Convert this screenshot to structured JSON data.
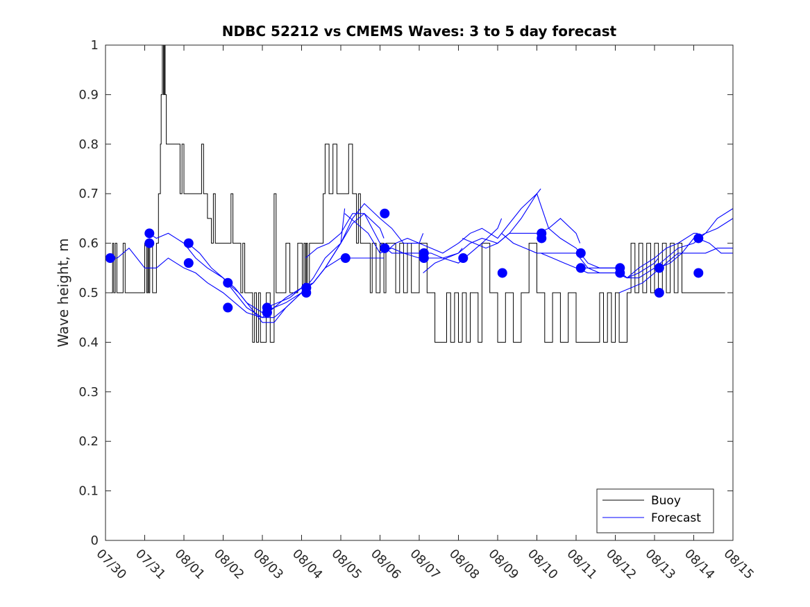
{
  "chart_data": {
    "type": "line",
    "title": "NDBC 52212 vs CMEMS Waves: 3 to 5 day forecast",
    "xlabel": "",
    "ylabel": "Wave height, m",
    "ylim": [
      0,
      1
    ],
    "xlim": [
      0,
      16
    ],
    "x_ticks": [
      0,
      1,
      2,
      3,
      4,
      5,
      6,
      7,
      8,
      9,
      10,
      11,
      12,
      13,
      14,
      15,
      16
    ],
    "x_tick_labels": [
      "07/30",
      "07/31",
      "08/01",
      "08/02",
      "08/03",
      "08/04",
      "08/05",
      "08/06",
      "08/07",
      "08/08",
      "08/09",
      "08/10",
      "08/11",
      "08/12",
      "08/13",
      "08/14",
      "08/15"
    ],
    "y_ticks": [
      0,
      0.1,
      0.2,
      0.3,
      0.4,
      0.5,
      0.6,
      0.7,
      0.8,
      0.9,
      1
    ],
    "y_tick_labels": [
      "0",
      "0.1",
      "0.2",
      "0.3",
      "0.4",
      "0.5",
      "0.6",
      "0.7",
      "0.8",
      "0.9",
      "1"
    ],
    "legend": {
      "position": "bottom-right",
      "entries": [
        {
          "label": "Buoy",
          "color": "#000000"
        },
        {
          "label": "Forecast",
          "color": "#0000ff"
        }
      ]
    },
    "series": [
      {
        "name": "Buoy",
        "color": "#000000",
        "style": "step",
        "x": [
          0,
          0.18,
          0.21,
          0.25,
          0.29,
          0.45,
          0.5,
          0.9,
          1.0,
          1.05,
          1.08,
          1.1,
          1.13,
          1.2,
          1.3,
          1.35,
          1.4,
          1.42,
          1.45,
          1.48,
          1.5,
          1.52,
          1.55,
          1.58,
          1.6,
          1.63,
          1.66,
          1.7,
          1.8,
          1.85,
          1.9,
          1.95,
          2.0,
          2.1,
          2.4,
          2.45,
          2.5,
          2.6,
          2.7,
          2.75,
          2.8,
          2.9,
          3.0,
          3.1,
          3.15,
          3.2,
          3.25,
          3.3,
          3.35,
          3.4,
          3.45,
          3.5,
          3.55,
          3.6,
          3.65,
          3.7,
          3.75,
          3.8,
          3.85,
          3.9,
          3.95,
          4.0,
          4.1,
          4.2,
          4.3,
          4.35,
          4.4,
          4.6,
          4.7,
          4.9,
          5.0,
          5.02,
          5.06,
          5.1,
          5.12,
          5.15,
          5.2,
          5.25,
          5.3,
          5.5,
          5.55,
          5.6,
          5.7,
          5.8,
          5.9,
          6.0,
          6.05,
          6.1,
          6.2,
          6.3,
          6.35,
          6.4,
          6.45,
          6.5,
          6.6,
          6.7,
          6.75,
          6.8,
          6.9,
          7.0,
          7.1,
          7.15,
          7.3,
          7.4,
          7.5,
          7.6,
          7.7,
          7.8,
          8.0,
          8.2,
          8.3,
          8.4,
          8.5,
          8.6,
          8.7,
          8.8,
          8.9,
          9.0,
          9.1,
          9.2,
          9.3,
          9.4,
          9.5,
          9.6,
          9.8,
          10.0,
          10.2,
          10.4,
          10.6,
          10.8,
          11.0,
          11.2,
          11.4,
          11.6,
          11.8,
          12.0,
          12.2,
          12.4,
          12.5,
          12.6,
          12.7,
          12.8,
          12.9,
          13.0,
          13.1,
          13.3,
          13.4,
          13.5,
          13.6,
          13.7,
          13.8,
          13.9,
          14.0,
          14.1,
          14.2,
          14.3,
          14.4,
          14.5,
          14.6,
          14.7,
          14.8,
          14.9,
          15.0,
          15.5,
          15.8
        ],
        "y": [
          0.5,
          0.6,
          0.5,
          0.6,
          0.5,
          0.6,
          0.5,
          0.5,
          0.6,
          0.5,
          0.6,
          0.5,
          0.6,
          0.5,
          0.6,
          0.7,
          0.8,
          0.9,
          1.0,
          0.9,
          1.0,
          0.9,
          0.8,
          0.8,
          0.8,
          0.8,
          0.8,
          0.8,
          0.8,
          0.8,
          0.7,
          0.8,
          0.7,
          0.7,
          0.7,
          0.8,
          0.7,
          0.65,
          0.6,
          0.7,
          0.6,
          0.6,
          0.6,
          0.6,
          0.6,
          0.7,
          0.6,
          0.6,
          0.6,
          0.6,
          0.5,
          0.6,
          0.5,
          0.5,
          0.5,
          0.5,
          0.4,
          0.5,
          0.4,
          0.5,
          0.4,
          0.4,
          0.5,
          0.4,
          0.7,
          0.5,
          0.5,
          0.6,
          0.5,
          0.6,
          0.6,
          0.5,
          0.6,
          0.5,
          0.6,
          0.5,
          0.6,
          0.6,
          0.6,
          0.6,
          0.7,
          0.8,
          0.7,
          0.8,
          0.7,
          0.7,
          0.7,
          0.7,
          0.8,
          0.7,
          0.7,
          0.6,
          0.7,
          0.6,
          0.6,
          0.6,
          0.5,
          0.6,
          0.5,
          0.6,
          0.5,
          0.6,
          0.6,
          0.5,
          0.6,
          0.5,
          0.6,
          0.5,
          0.6,
          0.5,
          0.5,
          0.4,
          0.4,
          0.4,
          0.5,
          0.4,
          0.5,
          0.4,
          0.5,
          0.4,
          0.5,
          0.5,
          0.4,
          0.6,
          0.5,
          0.4,
          0.5,
          0.4,
          0.5,
          0.6,
          0.5,
          0.4,
          0.5,
          0.4,
          0.5,
          0.4,
          0.4,
          0.4,
          0.4,
          0.5,
          0.4,
          0.5,
          0.4,
          0.5,
          0.4,
          0.5,
          0.6,
          0.5,
          0.6,
          0.5,
          0.6,
          0.5,
          0.6,
          0.5,
          0.6,
          0.5,
          0.6,
          0.5,
          0.6,
          0.5,
          0.5,
          0.5,
          0.5,
          0.5,
          0.5
        ]
      },
      {
        "name": "Forecast",
        "color": "#0000ff",
        "style": "line",
        "segments": [
          {
            "x": [
              0,
              0.3,
              0.6,
              1.0,
              1.3,
              1.6,
              2.0,
              2.3,
              2.6,
              3.0,
              3.3,
              3.6,
              4.0,
              4.3,
              4.6,
              5.0,
              5.1
            ],
            "y": [
              0.57,
              0.57,
              0.59,
              0.55,
              0.55,
              0.57,
              0.55,
              0.54,
              0.52,
              0.5,
              0.48,
              0.46,
              0.45,
              0.47,
              0.49,
              0.51,
              0.52
            ]
          },
          {
            "x": [
              1.1,
              1.3,
              1.6,
              2.0,
              2.3,
              2.6,
              3.0,
              3.3,
              3.6,
              4.0,
              4.3,
              4.6,
              5.0,
              5.3,
              5.6,
              6.0,
              6.1
            ],
            "y": [
              0.62,
              0.61,
              0.62,
              0.6,
              0.57,
              0.55,
              0.53,
              0.5,
              0.47,
              0.45,
              0.45,
              0.47,
              0.5,
              0.53,
              0.57,
              0.6,
              0.67
            ]
          },
          {
            "x": [
              2.1,
              2.4,
              2.7,
              3.0,
              3.3,
              3.6,
              4.0,
              4.3,
              4.6,
              5.0,
              5.3,
              5.6,
              6.0,
              6.3,
              6.6,
              7.0,
              7.1
            ],
            "y": [
              0.6,
              0.58,
              0.55,
              0.53,
              0.51,
              0.48,
              0.46,
              0.47,
              0.48,
              0.5,
              0.52,
              0.55,
              0.6,
              0.64,
              0.66,
              0.63,
              0.61
            ]
          },
          {
            "x": [
              3.1,
              3.4,
              3.7,
              4.0,
              4.3,
              4.6,
              5.0,
              5.3,
              5.6,
              6.0,
              6.3,
              6.6,
              7.0,
              7.1
            ],
            "y": [
              0.52,
              0.5,
              0.47,
              0.44,
              0.44,
              0.47,
              0.5,
              0.52,
              0.55,
              0.57,
              0.57,
              0.57,
              0.57,
              0.57
            ]
          },
          {
            "x": [
              4.1,
              4.4,
              4.7,
              5.0,
              5.3,
              5.6,
              6.0,
              6.3,
              6.6,
              7.0,
              7.3,
              7.6,
              8.0,
              8.1
            ],
            "y": [
              0.47,
              0.48,
              0.49,
              0.51,
              0.52,
              0.55,
              0.6,
              0.65,
              0.68,
              0.65,
              0.63,
              0.6,
              0.6,
              0.62
            ]
          },
          {
            "x": [
              5.1,
              5.4,
              5.7,
              6.0,
              6.3,
              6.6,
              7.0,
              7.3,
              7.6,
              8.0,
              8.3,
              8.6,
              9.0,
              9.1
            ],
            "y": [
              0.57,
              0.59,
              0.6,
              0.62,
              0.66,
              0.66,
              0.6,
              0.58,
              0.58,
              0.57,
              0.57,
              0.57,
              0.58,
              0.59
            ]
          },
          {
            "x": [
              6.1,
              6.4,
              6.7,
              7.0,
              7.3,
              7.6,
              8.0,
              8.3,
              8.6,
              9.0,
              9.3,
              9.6,
              10.0,
              10.1
            ],
            "y": [
              0.66,
              0.64,
              0.62,
              0.58,
              0.59,
              0.58,
              0.58,
              0.58,
              0.57,
              0.56,
              0.58,
              0.6,
              0.63,
              0.65
            ]
          },
          {
            "x": [
              7.1,
              7.4,
              7.7,
              8.0,
              8.3,
              8.6,
              9.0,
              9.3,
              9.6,
              10.0,
              10.3,
              10.6,
              11.0,
              11.1
            ],
            "y": [
              0.58,
              0.6,
              0.61,
              0.6,
              0.59,
              0.58,
              0.6,
              0.62,
              0.63,
              0.61,
              0.64,
              0.67,
              0.7,
              0.71
            ]
          },
          {
            "x": [
              8.1,
              8.4,
              8.7,
              9.0,
              9.3,
              9.6,
              10.0,
              10.3,
              10.6,
              11.0,
              11.3,
              11.6,
              12.0,
              12.1
            ],
            "y": [
              0.54,
              0.56,
              0.57,
              0.58,
              0.6,
              0.61,
              0.6,
              0.62,
              0.62,
              0.62,
              0.63,
              0.65,
              0.62,
              0.6
            ]
          },
          {
            "x": [
              9.1,
              9.4,
              9.7,
              10.0,
              10.3,
              10.6,
              11.0,
              11.3,
              11.6,
              12.0,
              12.3,
              12.6,
              13.0,
              13.1
            ],
            "y": [
              0.61,
              0.6,
              0.59,
              0.6,
              0.62,
              0.65,
              0.7,
              0.63,
              0.61,
              0.59,
              0.56,
              0.55,
              0.55,
              0.55
            ]
          },
          {
            "x": [
              10.1,
              10.4,
              10.7,
              11.0,
              11.3,
              11.6,
              12.0,
              12.3,
              12.6,
              13.0,
              13.3,
              13.6,
              14.0,
              14.1
            ],
            "y": [
              0.62,
              0.6,
              0.59,
              0.58,
              0.58,
              0.58,
              0.58,
              0.55,
              0.54,
              0.54,
              0.53,
              0.54,
              0.56,
              0.57
            ]
          },
          {
            "x": [
              11.1,
              11.4,
              11.7,
              12.0,
              12.3,
              12.6,
              13.0,
              13.3,
              13.6,
              14.0,
              14.3,
              14.6,
              15.0,
              15.1
            ],
            "y": [
              0.58,
              0.57,
              0.56,
              0.55,
              0.54,
              0.54,
              0.54,
              0.53,
              0.55,
              0.57,
              0.59,
              0.6,
              0.62,
              0.62
            ]
          },
          {
            "x": [
              12.1,
              12.4,
              12.7,
              13.0,
              13.3,
              13.6,
              14.0,
              14.3,
              14.6,
              15.0,
              15.3,
              15.6,
              16.0
            ],
            "y": [
              0.55,
              0.55,
              0.55,
              0.55,
              0.53,
              0.53,
              0.55,
              0.57,
              0.59,
              0.6,
              0.62,
              0.65,
              0.67
            ]
          },
          {
            "x": [
              13.1,
              13.4,
              13.7,
              14.0,
              14.3,
              14.6,
              15.0,
              15.3,
              15.6,
              16.0
            ],
            "y": [
              0.5,
              0.51,
              0.52,
              0.54,
              0.56,
              0.58,
              0.58,
              0.58,
              0.59,
              0.59
            ]
          },
          {
            "x": [
              14.1,
              14.4,
              14.7,
              15.0,
              15.3,
              15.6,
              16.0
            ],
            "y": [
              0.55,
              0.56,
              0.58,
              0.61,
              0.62,
              0.63,
              0.65
            ]
          },
          {
            "x": [
              15.1,
              15.4,
              15.7,
              16.0
            ],
            "y": [
              0.61,
              0.6,
              0.58,
              0.58
            ]
          }
        ],
        "markers": {
          "x": [
            0.12,
            1.12,
            1.12,
            2.12,
            2.12,
            3.12,
            3.12,
            4.12,
            4.12,
            4.12,
            5.12,
            5.12,
            5.12,
            6.12,
            7.12,
            7.12,
            8.12,
            8.12,
            9.12,
            10.12,
            11.12,
            11.12,
            12.12,
            12.12,
            13.12,
            13.12,
            14.12,
            14.12,
            15.12,
            15.12
          ],
          "y": [
            0.57,
            0.62,
            0.6,
            0.6,
            0.56,
            0.52,
            0.47,
            0.46,
            0.47,
            0.46,
            0.51,
            0.5,
            0.51,
            0.57,
            0.66,
            0.59,
            0.58,
            0.57,
            0.57,
            0.54,
            0.61,
            0.62,
            0.58,
            0.55,
            0.54,
            0.55,
            0.5,
            0.55,
            0.54,
            0.61
          ]
        }
      }
    ]
  }
}
